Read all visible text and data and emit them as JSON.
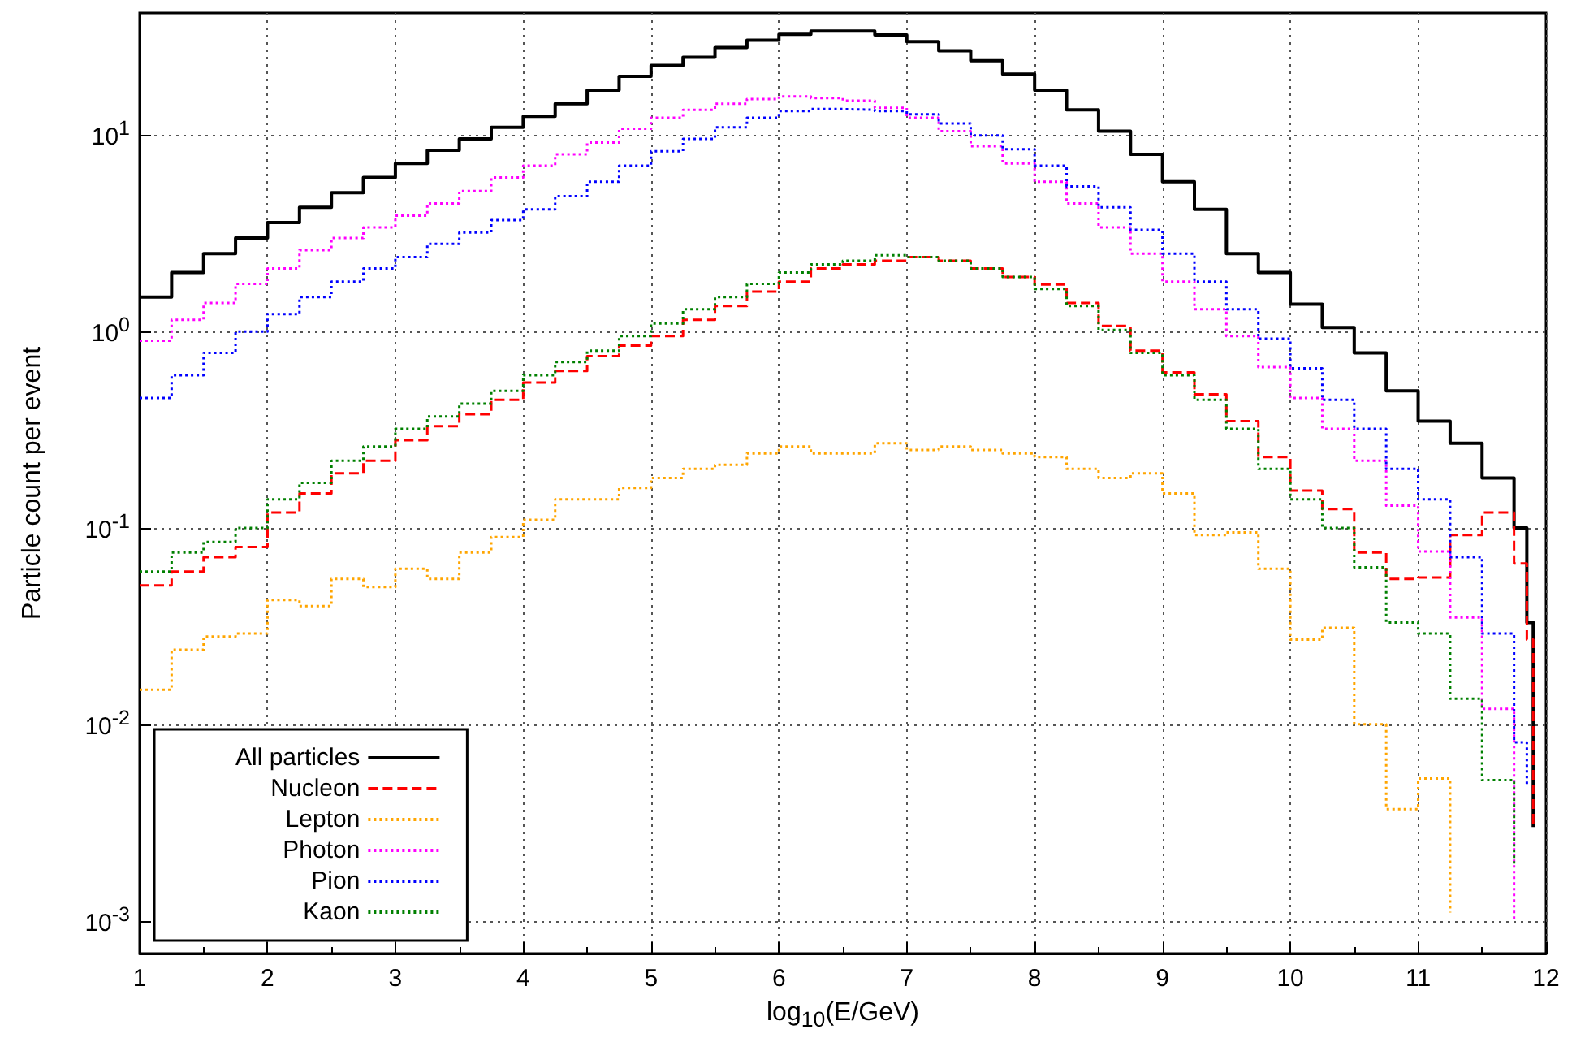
{
  "chart_data": {
    "type": "step",
    "xlabel": "log$_{10}$(E/GeV)",
    "ylabel": "Particle count per event",
    "x": [
      1.0,
      1.25,
      1.5,
      1.75,
      2.0,
      2.25,
      2.5,
      2.75,
      3.0,
      3.25,
      3.5,
      3.75,
      4.0,
      4.25,
      4.5,
      4.75,
      5.0,
      5.25,
      5.5,
      5.75,
      6.0,
      6.25,
      6.5,
      6.75,
      7.0,
      7.25,
      7.5,
      7.75,
      8.0,
      8.25,
      8.5,
      8.75,
      9.0,
      9.25,
      9.5,
      9.75,
      10.0,
      10.25,
      10.5,
      10.75,
      11.0,
      11.25,
      11.5,
      11.75,
      11.85,
      11.9
    ],
    "series": [
      {
        "name": "All particles",
        "color": "#000000",
        "line_style": "solid",
        "values": [
          1.5,
          2.0,
          2.5,
          3.0,
          3.6,
          4.3,
          5.1,
          6.1,
          7.2,
          8.4,
          9.6,
          11,
          12.5,
          14.5,
          17,
          20,
          22.7,
          25,
          28,
          30.5,
          32.7,
          34,
          34,
          32.5,
          30,
          27,
          24,
          20.5,
          17,
          13.5,
          10.5,
          8,
          5.8,
          4.2,
          2.5,
          2.0,
          1.38,
          1.05,
          0.78,
          0.5,
          0.35,
          0.27,
          0.18,
          0.1,
          0.033,
          0.003
        ]
      },
      {
        "name": "Nucleon",
        "color": "#ff0000",
        "line_style": "dashed",
        "values": [
          0.051,
          0.06,
          0.071,
          0.08,
          0.12,
          0.15,
          0.19,
          0.22,
          0.28,
          0.33,
          0.38,
          0.45,
          0.55,
          0.63,
          0.75,
          0.85,
          0.95,
          1.15,
          1.35,
          1.6,
          1.8,
          2.1,
          2.2,
          2.3,
          2.4,
          2.3,
          2.1,
          1.9,
          1.74,
          1.4,
          1.07,
          0.8,
          0.62,
          0.48,
          0.35,
          0.23,
          0.155,
          0.125,
          0.075,
          0.055,
          0.056,
          0.092,
          0.12,
          0.066,
          0.027,
          0.003
        ]
      },
      {
        "name": "Lepton",
        "color": "#ffa500",
        "line_style": "dotted",
        "values": [
          0.015,
          0.024,
          0.028,
          0.029,
          0.043,
          0.04,
          0.055,
          0.05,
          0.062,
          0.055,
          0.075,
          0.09,
          0.11,
          0.14,
          0.14,
          0.16,
          0.18,
          0.2,
          0.21,
          0.24,
          0.26,
          0.24,
          0.24,
          0.27,
          0.25,
          0.26,
          0.25,
          0.24,
          0.23,
          0.2,
          0.18,
          0.19,
          0.15,
          0.092,
          0.095,
          0.062,
          0.027,
          0.031,
          0.01,
          0.0037,
          0.0053,
          0.0011,
          null,
          null,
          null,
          null
        ]
      },
      {
        "name": "Photon",
        "color": "#ff00ff",
        "line_style": "dotted",
        "values": [
          0.9,
          1.15,
          1.4,
          1.75,
          2.1,
          2.6,
          3.0,
          3.4,
          3.9,
          4.5,
          5.2,
          6.1,
          7,
          8,
          9.2,
          10.8,
          12.3,
          13.5,
          14.5,
          15.3,
          15.8,
          15.5,
          15,
          13.8,
          12.3,
          10.5,
          8.8,
          7.2,
          5.8,
          4.5,
          3.4,
          2.5,
          1.8,
          1.3,
          0.95,
          0.66,
          0.46,
          0.32,
          0.22,
          0.13,
          0.076,
          0.035,
          0.012,
          0.001,
          null,
          null
        ]
      },
      {
        "name": "Pion",
        "color": "#0000ff",
        "line_style": "dotted",
        "values": [
          0.46,
          0.6,
          0.78,
          1.0,
          1.23,
          1.5,
          1.8,
          2.1,
          2.4,
          2.8,
          3.2,
          3.7,
          4.2,
          4.9,
          5.8,
          7,
          8.3,
          9.6,
          11,
          12.3,
          13.3,
          13.6,
          13.5,
          13.3,
          12.8,
          11.5,
          10,
          8.5,
          7,
          5.5,
          4.3,
          3.3,
          2.5,
          1.8,
          1.3,
          0.92,
          0.65,
          0.45,
          0.32,
          0.2,
          0.14,
          0.071,
          0.029,
          0.0081,
          0.0049,
          null
        ]
      },
      {
        "name": "Kaon",
        "color": "#008000",
        "line_style": "dotted",
        "values": [
          0.06,
          0.075,
          0.085,
          0.1,
          0.14,
          0.17,
          0.22,
          0.26,
          0.32,
          0.37,
          0.43,
          0.5,
          0.6,
          0.7,
          0.8,
          0.95,
          1.1,
          1.3,
          1.5,
          1.75,
          2.0,
          2.2,
          2.3,
          2.45,
          2.4,
          2.3,
          2.1,
          1.9,
          1.65,
          1.35,
          1.02,
          0.78,
          0.6,
          0.45,
          0.32,
          0.2,
          0.14,
          0.1,
          0.063,
          0.033,
          0.029,
          0.0135,
          0.0052,
          0.0019,
          null,
          null
        ]
      }
    ],
    "xlim": [
      1,
      12
    ],
    "xticks": [
      1,
      2,
      3,
      4,
      5,
      6,
      7,
      8,
      9,
      10,
      11,
      12
    ],
    "ylim": [
      0.00068,
      42
    ],
    "log": "y",
    "yticks": [
      {
        "value": 0.001,
        "label": "10$^{-3}$"
      },
      {
        "value": 0.01,
        "label": "10$^{-2}$"
      },
      {
        "value": 0.1,
        "label": "10$^{-1}$"
      },
      {
        "value": 1,
        "label": "10$^{0}$"
      },
      {
        "value": 10,
        "label": "10$^{1}$"
      }
    ],
    "grid": true,
    "legend": "bottom left",
    "marker": "none"
  }
}
